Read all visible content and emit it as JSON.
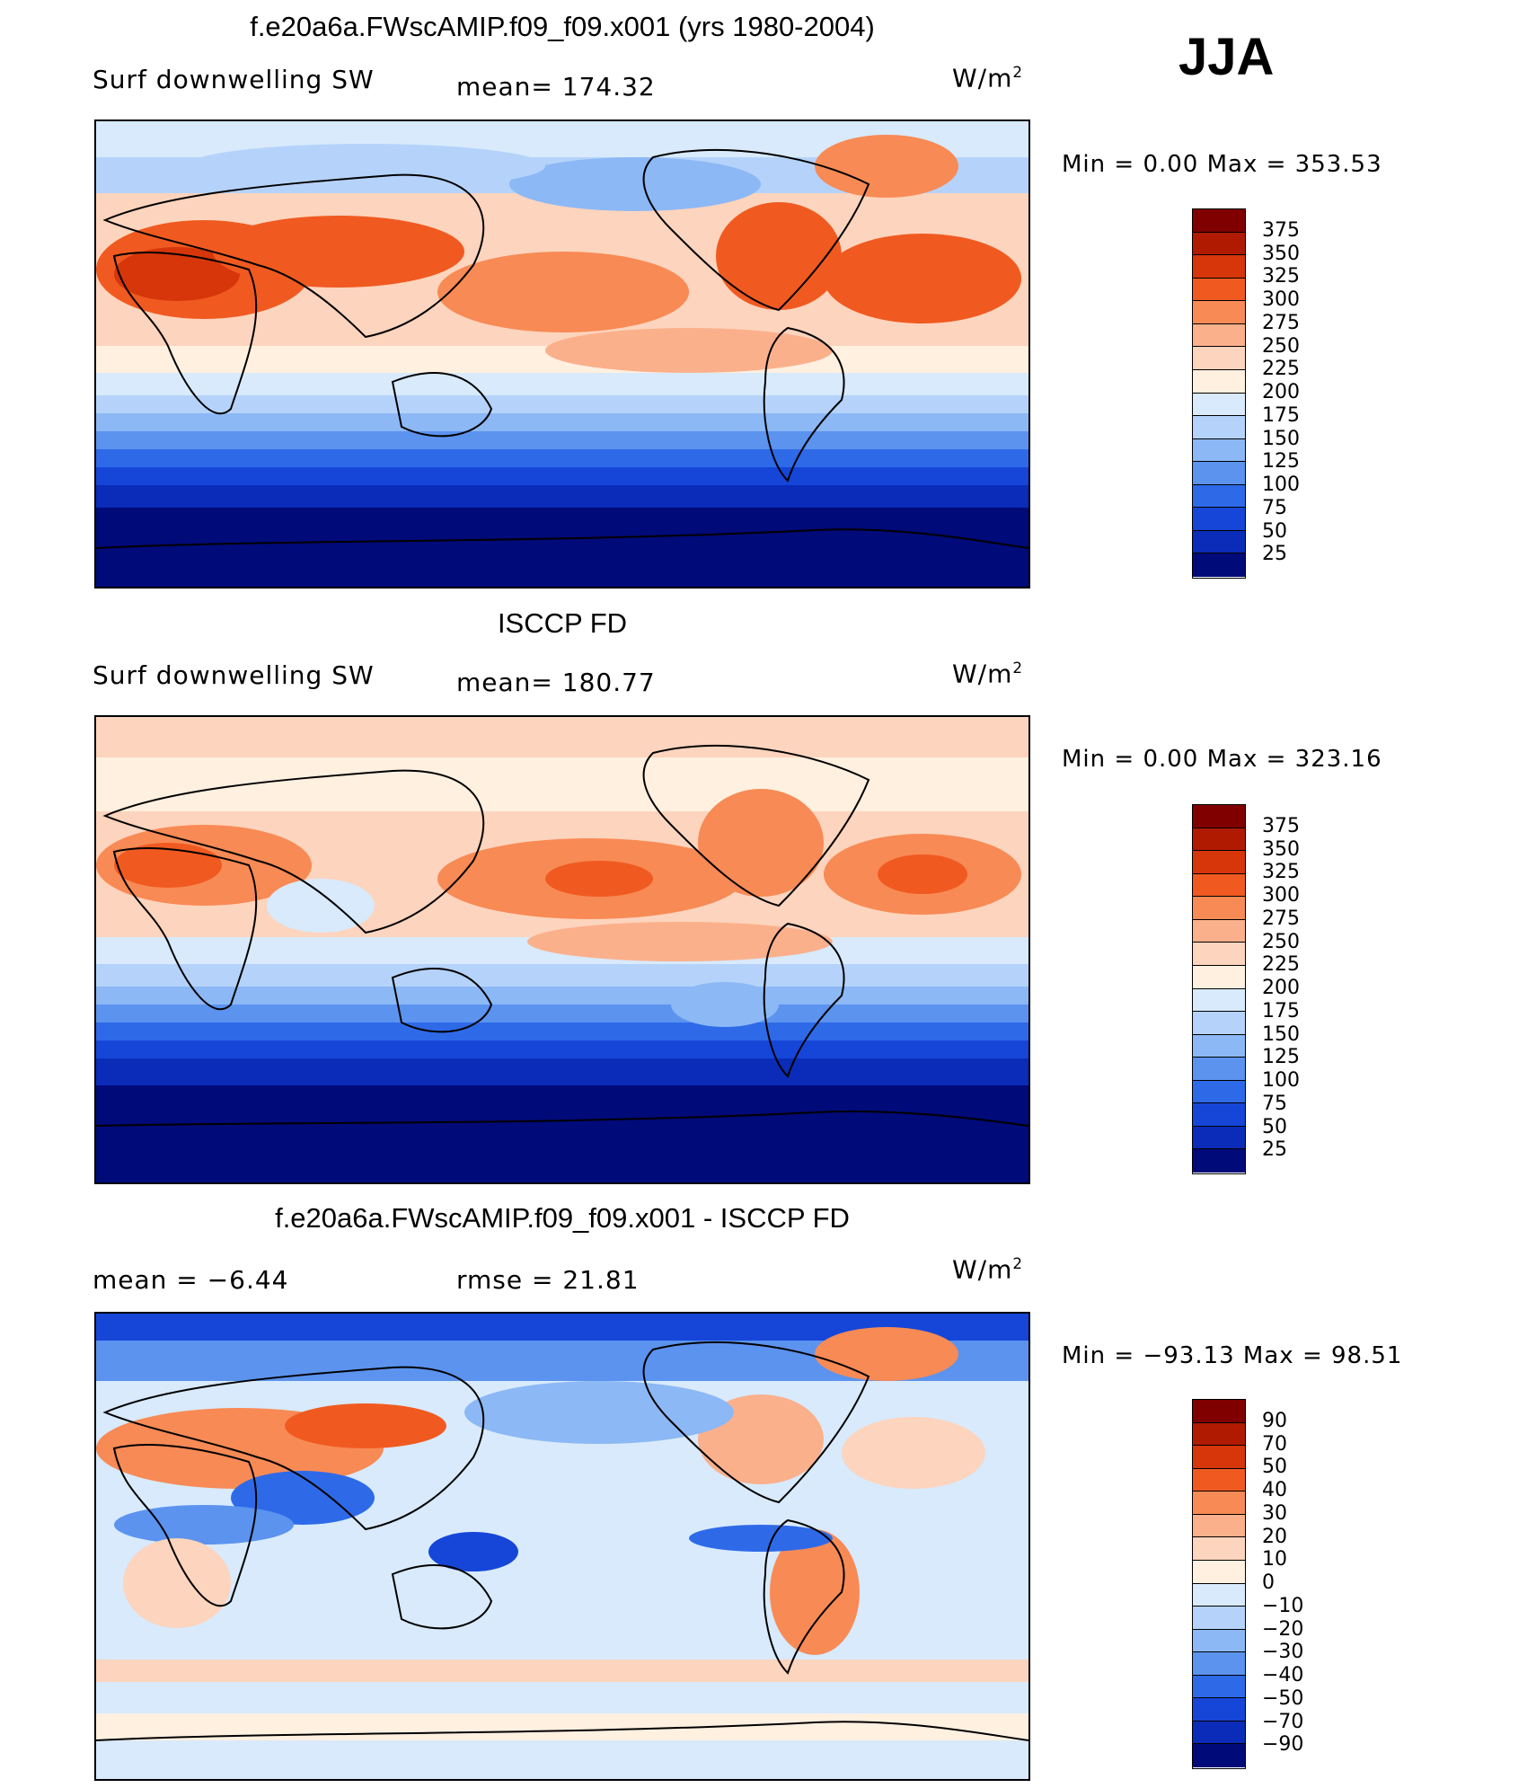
{
  "season": "JJA",
  "panels": [
    {
      "title": "f.e20a6a.FWscAMIP.f09_f09.x001 (yrs 1980-2004)",
      "left_label": "Surf  downwelling  SW",
      "center_label": "mean=  174.32",
      "units": "W/m",
      "units_sup": "2",
      "minmax": "Min  =     0.00  Max  =  353.53",
      "colorbar_labels": [
        "375",
        "350",
        "325",
        "300",
        "275",
        "250",
        "225",
        "200",
        "175",
        "150",
        "125",
        "100",
        "75",
        "50",
        "25"
      ],
      "colorbar_colors": [
        "#800000",
        "#b01a00",
        "#d6360a",
        "#f05a20",
        "#f88a55",
        "#fbb08c",
        "#fdd4bd",
        "#fff0e0",
        "#d8eafc",
        "#b5d3fa",
        "#8cb8f5",
        "#5b93ef",
        "#2e6ae8",
        "#1646d8",
        "#0a2cb8",
        "#000a78"
      ]
    },
    {
      "title": "ISCCP FD",
      "left_label": "Surf  downwelling  SW",
      "center_label": "mean=  180.77",
      "units": "W/m",
      "units_sup": "2",
      "minmax": "Min  =     0.00  Max  =  323.16",
      "colorbar_labels": [
        "375",
        "350",
        "325",
        "300",
        "275",
        "250",
        "225",
        "200",
        "175",
        "150",
        "125",
        "100",
        "75",
        "50",
        "25"
      ],
      "colorbar_colors": [
        "#800000",
        "#b01a00",
        "#d6360a",
        "#f05a20",
        "#f88a55",
        "#fbb08c",
        "#fdd4bd",
        "#fff0e0",
        "#d8eafc",
        "#b5d3fa",
        "#8cb8f5",
        "#5b93ef",
        "#2e6ae8",
        "#1646d8",
        "#0a2cb8",
        "#000a78"
      ]
    },
    {
      "title": "f.e20a6a.FWscAMIP.f09_f09.x001 - ISCCP FD",
      "left_label": "mean  =    −6.44",
      "center_label": "rmse  =    21.81",
      "units": "W/m",
      "units_sup": "2",
      "minmax": "Min  = −93.13  Max  =    98.51",
      "colorbar_labels": [
        "90",
        "70",
        "50",
        "40",
        "30",
        "20",
        "10",
        "0",
        "−10",
        "−20",
        "−30",
        "−40",
        "−50",
        "−70",
        "−90"
      ],
      "colorbar_colors": [
        "#800000",
        "#b01a00",
        "#d6360a",
        "#f05a20",
        "#f88a55",
        "#fbb08c",
        "#fdd4bd",
        "#fff0e0",
        "#d8eafc",
        "#b5d3fa",
        "#8cb8f5",
        "#5b93ef",
        "#2e6ae8",
        "#1646d8",
        "#0a2cb8",
        "#000a78"
      ]
    }
  ]
}
